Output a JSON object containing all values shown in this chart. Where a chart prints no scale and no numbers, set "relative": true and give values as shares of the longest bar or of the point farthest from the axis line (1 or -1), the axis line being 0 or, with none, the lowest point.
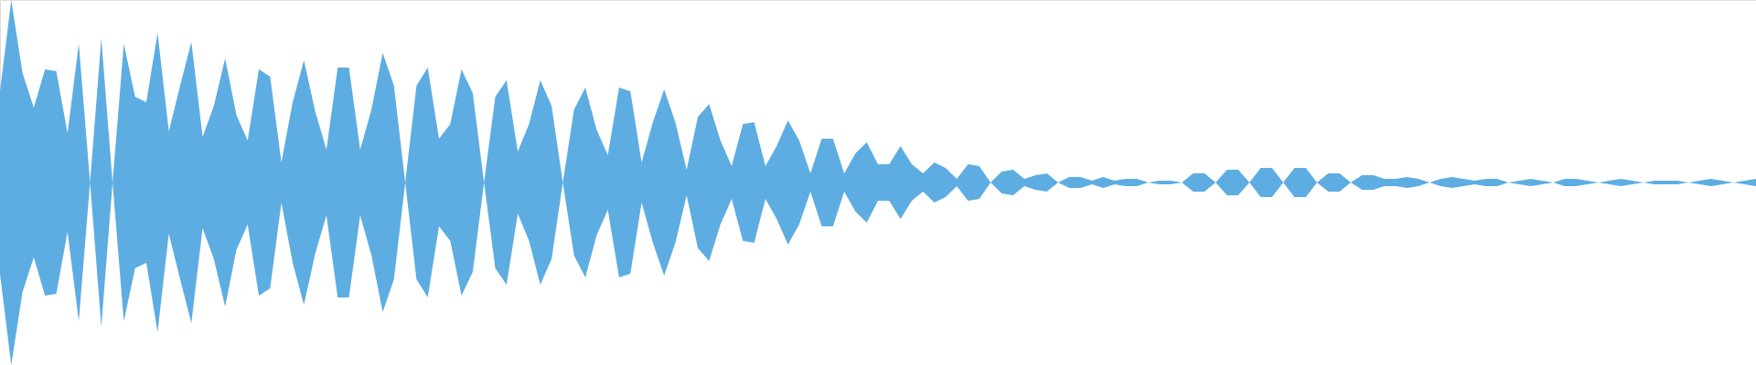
{
  "chart_data": {
    "type": "area",
    "relative": true,
    "stacked": true,
    "categories": [
      null,
      null,
      null,
      null,
      null,
      null,
      null,
      null,
      null,
      null,
      null,
      null,
      null,
      null,
      null,
      null,
      null,
      null,
      null,
      null,
      null,
      null,
      null,
      null,
      null,
      null,
      null,
      null,
      null,
      null,
      null,
      null,
      null,
      null,
      null,
      null,
      null,
      null,
      null,
      null,
      null,
      null,
      null,
      null,
      null,
      null,
      null,
      null,
      null,
      null,
      null,
      null,
      null,
      null,
      null,
      null,
      null,
      null,
      null,
      null,
      null,
      null,
      null,
      null,
      null,
      null,
      null,
      null,
      null,
      null,
      null,
      null,
      null,
      null,
      null,
      null,
      null,
      null,
      null,
      null,
      null,
      null,
      null,
      null,
      null,
      null,
      null,
      null,
      null,
      null,
      null,
      null,
      null,
      null,
      null,
      null,
      null,
      null,
      null,
      null,
      null,
      null,
      null,
      null,
      null,
      null,
      null,
      null,
      null,
      null,
      null,
      null,
      null,
      null,
      null,
      null,
      null,
      null,
      null,
      null,
      null,
      null,
      null,
      null,
      null,
      null,
      null,
      null,
      null,
      null,
      null,
      null,
      null,
      null,
      null,
      null,
      null,
      null,
      null,
      null,
      null,
      null,
      null,
      null,
      null,
      null,
      null,
      null,
      null,
      null,
      null,
      null,
      null,
      null,
      null,
      null,
      null
    ],
    "series": [
      {
        "color": "#ffffff",
        "values": [
          0.25,
          0.0,
          0.2,
          0.295,
          0.19,
          0.195,
          0.365,
          0.12,
          0.5,
          0.105,
          0.5,
          0.12,
          0.265,
          0.28,
          0.09,
          0.36,
          0.235,
          0.115,
          0.375,
          0.29,
          0.16,
          0.315,
          0.385,
          0.19,
          0.21,
          0.445,
          0.28,
          0.165,
          0.305,
          0.41,
          0.185,
          0.185,
          0.41,
          0.3,
          0.145,
          0.235,
          0.5,
          0.235,
          0.185,
          0.38,
          0.34,
          0.19,
          0.255,
          0.5,
          0.265,
          0.22,
          0.415,
          0.34,
          0.22,
          0.29,
          0.5,
          0.3,
          0.24,
          0.355,
          0.425,
          0.24,
          0.25,
          0.445,
          0.335,
          0.245,
          0.335,
          0.465,
          0.32,
          0.285,
          0.385,
          0.455,
          0.34,
          0.335,
          0.455,
          0.4,
          0.33,
          0.385,
          0.475,
          0.38,
          0.38,
          0.475,
          0.42,
          0.39,
          0.45,
          0.45,
          0.4,
          0.45,
          0.475,
          0.445,
          0.46,
          0.49,
          0.45,
          0.455,
          0.5,
          0.47,
          0.465,
          0.49,
          0.48,
          0.475,
          0.5,
          0.485,
          0.485,
          0.495,
          0.485,
          0.495,
          0.49,
          0.49,
          0.5,
          0.495,
          0.495,
          0.5,
          0.475,
          0.475,
          0.5,
          0.465,
          0.465,
          0.5,
          0.46,
          0.46,
          0.5,
          0.46,
          0.46,
          0.5,
          0.475,
          0.475,
          0.5,
          0.48,
          0.48,
          0.49,
          0.49,
          0.485,
          0.49,
          0.5,
          0.49,
          0.485,
          0.49,
          0.495,
          0.49,
          0.49,
          0.5,
          0.495,
          0.49,
          0.495,
          0.5,
          0.49,
          0.49,
          0.495,
          0.5,
          0.495,
          0.49,
          0.495,
          0.5,
          0.495,
          0.495,
          0.495,
          0.5,
          0.495,
          0.49,
          0.495,
          0.5,
          0.495,
          0.49
        ]
      },
      {
        "color": "#5dade2",
        "values": [
          0.5,
          1.0,
          0.6,
          0.41,
          0.62,
          0.61,
          0.27,
          0.76,
          0,
          0.79,
          0,
          0.76,
          0.47,
          0.44,
          0.82,
          0.28,
          0.53,
          0.77,
          0.25,
          0.42,
          0.68,
          0.37,
          0.23,
          0.62,
          0.58,
          0.11,
          0.44,
          0.67,
          0.39,
          0.18,
          0.63,
          0.63,
          0.18,
          0.4,
          0.71,
          0.53,
          0,
          0.53,
          0.63,
          0.24,
          0.32,
          0.62,
          0.49,
          0,
          0.47,
          0.56,
          0.17,
          0.32,
          0.56,
          0.42,
          0,
          0.4,
          0.52,
          0.29,
          0.15,
          0.52,
          0.5,
          0.11,
          0.33,
          0.51,
          0.33,
          0.07,
          0.36,
          0.43,
          0.23,
          0.09,
          0.32,
          0.33,
          0.09,
          0.2,
          0.34,
          0.23,
          0.05,
          0.24,
          0.24,
          0.05,
          0.16,
          0.22,
          0.1,
          0.1,
          0.2,
          0.1,
          0.05,
          0.11,
          0.08,
          0.02,
          0.1,
          0.09,
          0,
          0.06,
          0.07,
          0.02,
          0.04,
          0.05,
          0,
          0.03,
          0.03,
          0.01,
          0.03,
          0.01,
          0.02,
          0.02,
          0,
          0.01,
          0.01,
          0,
          0.05,
          0.05,
          0,
          0.07,
          0.07,
          0,
          0.08,
          0.08,
          0,
          0.08,
          0.08,
          0,
          0.05,
          0.05,
          0,
          0.04,
          0.04,
          0.02,
          0.02,
          0.03,
          0.02,
          0,
          0.02,
          0.03,
          0.02,
          0.01,
          0.02,
          0.02,
          0,
          0.01,
          0.02,
          0.01,
          0,
          0.02,
          0.02,
          0.01,
          0,
          0.01,
          0.02,
          0.01,
          0,
          0.01,
          0.01,
          0.01,
          0,
          0.01,
          0.02,
          0.01,
          0,
          0.01,
          0.02
        ]
      }
    ]
  }
}
